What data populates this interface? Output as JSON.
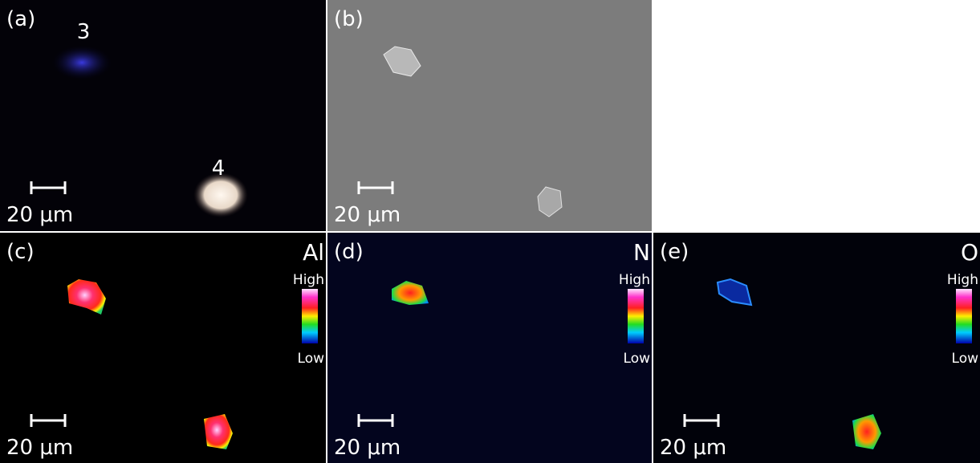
{
  "panels": [
    {
      "label": "(a)",
      "annotations": [
        "3",
        "4"
      ],
      "scale_bar": "20 μm"
    },
    {
      "label": "(b)",
      "scale_bar": "20 μm"
    },
    {
      "label": "(c)",
      "element": "Al",
      "colorbar": {
        "high": "High",
        "low": "Low"
      },
      "scale_bar": "20 μm"
    },
    {
      "label": "(d)",
      "element": "N",
      "colorbar": {
        "high": "High",
        "low": "Low"
      },
      "scale_bar": "20 μm"
    },
    {
      "label": "(e)",
      "element": "O",
      "colorbar": {
        "high": "High",
        "low": "Low"
      },
      "scale_bar": "20 μm"
    }
  ]
}
